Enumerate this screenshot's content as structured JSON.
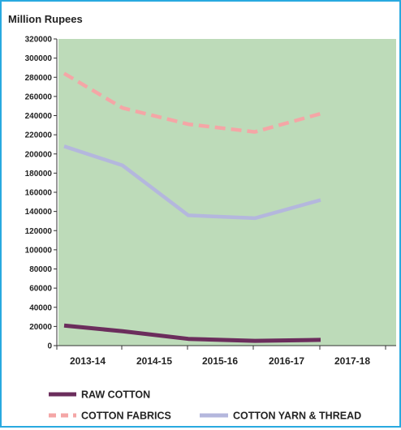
{
  "chart_data": {
    "type": "line",
    "title": "",
    "unit_label": "Million Rupees",
    "xlabel": "",
    "ylabel": "",
    "categories": [
      "2013-14",
      "2014-15",
      "2015-16",
      "2016-17",
      "2017-18"
    ],
    "ylim": [
      0,
      320000
    ],
    "yticks": [
      0,
      20000,
      40000,
      60000,
      80000,
      100000,
      120000,
      140000,
      160000,
      180000,
      200000,
      220000,
      240000,
      260000,
      280000,
      300000,
      320000
    ],
    "grid": false,
    "plot_background": "#bddbb9",
    "frame_color": "#29a9e0",
    "legend_position": "bottom",
    "series": [
      {
        "name": "RAW COTTON",
        "color": "#6b2d5c",
        "dashed": false,
        "values": [
          21000,
          15000,
          7000,
          5000,
          6000
        ]
      },
      {
        "name": "COTTON FABRICS",
        "color": "#f4a6a6",
        "dashed": true,
        "values": [
          284000,
          248000,
          231000,
          223000,
          242000
        ]
      },
      {
        "name": "COTTON YARN & THREAD",
        "color": "#b4b7dd",
        "dashed": false,
        "values": [
          208000,
          188000,
          136000,
          133000,
          152000
        ]
      }
    ]
  }
}
